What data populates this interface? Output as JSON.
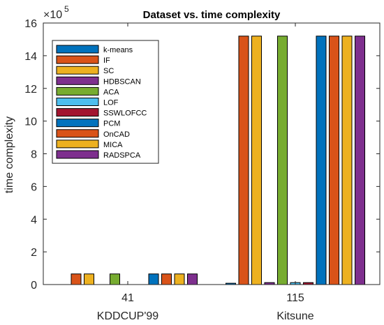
{
  "chart_data": {
    "type": "bar",
    "title": "Dataset vs. time complexity",
    "ylabel": "time complexity",
    "exponent_base": "×10",
    "exponent_power": "5",
    "ylim": [
      0,
      16
    ],
    "yticks": [
      "0",
      "2",
      "4",
      "6",
      "8",
      "10",
      "12",
      "14",
      "16"
    ],
    "categories": [
      "41",
      "115"
    ],
    "category_names": [
      "KDDCUP'99",
      "Kitsune"
    ],
    "grid": false,
    "legend_position": "top-left",
    "series": [
      {
        "name": "k-means",
        "color": "#0072BD",
        "values": [
          0,
          0.08
        ]
      },
      {
        "name": "IF",
        "color": "#D95319",
        "values": [
          0.65,
          15.2
        ]
      },
      {
        "name": "SC",
        "color": "#EDB120",
        "values": [
          0.65,
          15.2
        ]
      },
      {
        "name": "HDBSCAN",
        "color": "#7E2F8E",
        "values": [
          0,
          0.12
        ]
      },
      {
        "name": "ACA",
        "color": "#77AC30",
        "values": [
          0.65,
          15.2
        ]
      },
      {
        "name": "LOF",
        "color": "#4DBEEE",
        "values": [
          0,
          0.12
        ]
      },
      {
        "name": "SSWLOFCC",
        "color": "#A2142F",
        "values": [
          0,
          0.12
        ]
      },
      {
        "name": "PCM",
        "color": "#0072BD",
        "values": [
          0.65,
          15.2
        ]
      },
      {
        "name": "OnCAD",
        "color": "#D95319",
        "values": [
          0.65,
          15.2
        ]
      },
      {
        "name": "MICA",
        "color": "#EDB120",
        "values": [
          0.65,
          15.2
        ]
      },
      {
        "name": "RADSPCA",
        "color": "#7E2F8E",
        "values": [
          0.65,
          15.2
        ]
      }
    ]
  }
}
